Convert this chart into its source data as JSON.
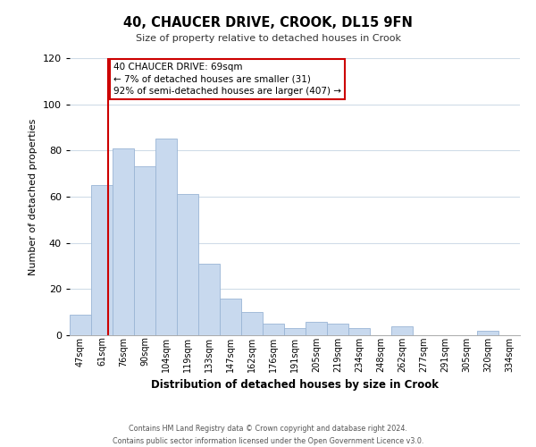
{
  "title": "40, CHAUCER DRIVE, CROOK, DL15 9FN",
  "subtitle": "Size of property relative to detached houses in Crook",
  "xlabel": "Distribution of detached houses by size in Crook",
  "ylabel": "Number of detached properties",
  "categories": [
    "47sqm",
    "61sqm",
    "76sqm",
    "90sqm",
    "104sqm",
    "119sqm",
    "133sqm",
    "147sqm",
    "162sqm",
    "176sqm",
    "191sqm",
    "205sqm",
    "219sqm",
    "234sqm",
    "248sqm",
    "262sqm",
    "277sqm",
    "291sqm",
    "305sqm",
    "320sqm",
    "334sqm"
  ],
  "values": [
    9,
    65,
    81,
    73,
    85,
    61,
    31,
    16,
    10,
    5,
    3,
    6,
    5,
    3,
    0,
    4,
    0,
    0,
    0,
    2,
    0
  ],
  "bar_color": "#c8d9ee",
  "bar_edge_color": "#9ab5d5",
  "vline_color": "#cc0000",
  "ylim": [
    0,
    120
  ],
  "yticks": [
    0,
    20,
    40,
    60,
    80,
    100,
    120
  ],
  "annotation_text": "40 CHAUCER DRIVE: 69sqm\n← 7% of detached houses are smaller (31)\n92% of semi-detached houses are larger (407) →",
  "annotation_box_color": "#ffffff",
  "annotation_box_edge": "#cc0000",
  "footer_line1": "Contains HM Land Registry data © Crown copyright and database right 2024.",
  "footer_line2": "Contains public sector information licensed under the Open Government Licence v3.0.",
  "background_color": "#ffffff",
  "grid_color": "#d0dce8"
}
